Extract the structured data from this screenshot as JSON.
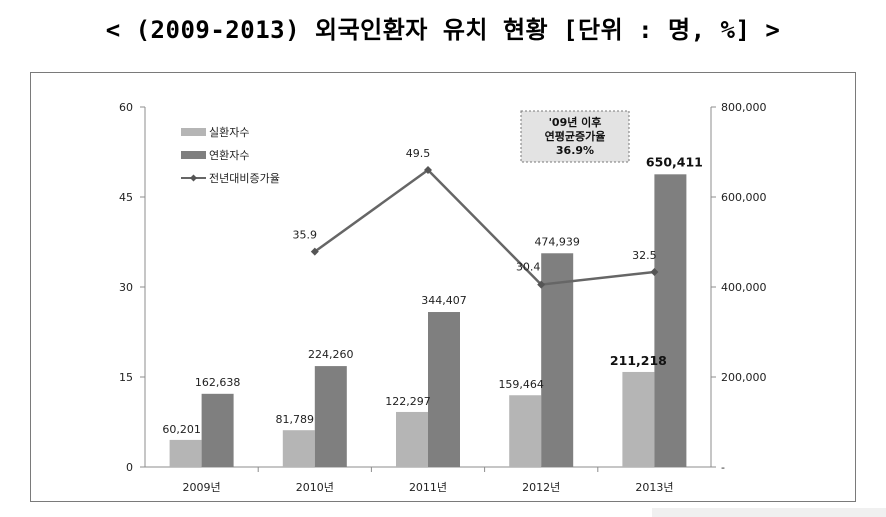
{
  "title": "< (2009-2013) 외국인환자 유치 현황 [단위 : 명, %] >",
  "colors": {
    "real_patients": "#b5b5b5",
    "total_patients": "#7f7f7f",
    "growth_line": "#666666",
    "callout_bg": "#e3e3e3"
  },
  "chart_data": {
    "type": "bar",
    "categories": [
      "2009년",
      "2010년",
      "2011년",
      "2012년",
      "2013년"
    ],
    "series": [
      {
        "name": "실환자수",
        "type": "bar",
        "axis": "right",
        "values": [
          60201,
          81789,
          122297,
          159464,
          211218
        ],
        "labels": [
          "60,201",
          "81,789",
          "122,297",
          "159,464",
          "211,218"
        ]
      },
      {
        "name": "연환자수",
        "type": "bar",
        "axis": "right",
        "values": [
          162638,
          224260,
          344407,
          474939,
          650411
        ],
        "labels": [
          "162,638",
          "224,260",
          "344,407",
          "474,939",
          "650,411"
        ]
      },
      {
        "name": "전년대비증가율",
        "type": "line",
        "axis": "left",
        "values": [
          null,
          35.9,
          49.5,
          30.4,
          32.5
        ],
        "labels": [
          "",
          "35.9",
          "49.5",
          "30.4",
          "32.5"
        ]
      }
    ],
    "y_left": {
      "range": [
        0,
        60
      ],
      "ticks": [
        0,
        15,
        30,
        45,
        60
      ],
      "tick_labels": [
        "0",
        "15",
        "30",
        "45",
        "60"
      ]
    },
    "y_right": {
      "range": [
        0,
        800000
      ],
      "ticks": [
        0,
        200000,
        400000,
        600000,
        800000
      ],
      "tick_labels": [
        "-",
        "200,000",
        "400,000",
        "600,000",
        "800,000"
      ]
    },
    "annotation": {
      "lines": [
        "'09년 이후",
        "연평균증가율",
        "36.9%"
      ]
    },
    "legend_position": "top-left",
    "grid": false
  }
}
